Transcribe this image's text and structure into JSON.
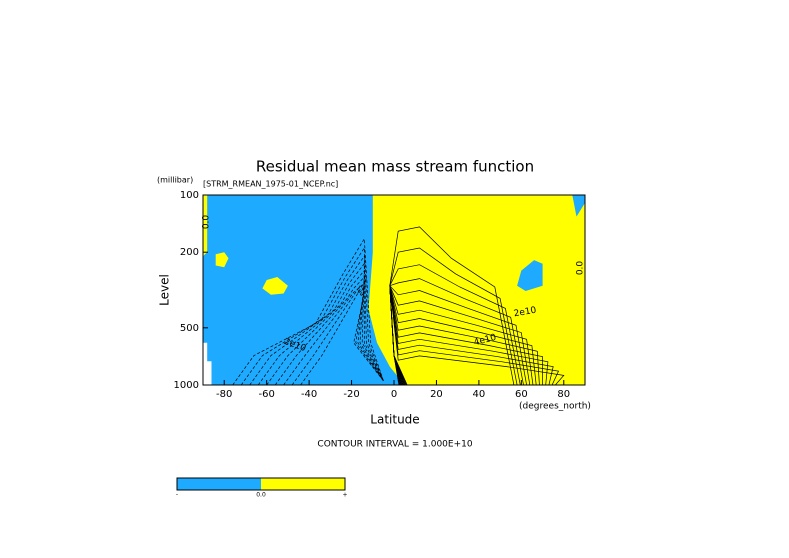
{
  "chart_data": {
    "type": "contour",
    "title": "Residual mean mass stream function",
    "subtitle": "[STRM_RMEAN_1975-01_NCEP.nc]",
    "y_unit": "(millibar)",
    "ylabel": "Level",
    "xlabel": "Latitude",
    "x_unit": "(degrees_north)",
    "footer": "CONTOUR INTERVAL = 1.000E+10",
    "xlim": [
      -90,
      90
    ],
    "xticks": [
      -80,
      -60,
      -40,
      -20,
      0,
      20,
      40,
      60,
      80
    ],
    "ylim": [
      1000,
      100
    ],
    "yticks": [
      100,
      200,
      500,
      1000
    ],
    "ylog": true,
    "negative_color": "#1eaaff",
    "positive_color": "#ffff00",
    "contour_labels": [
      "0.0",
      "2e10",
      "2e10",
      "4e10",
      "0.0"
    ],
    "colorbar": {
      "labels": [
        "-",
        "0.0",
        "+"
      ]
    }
  }
}
